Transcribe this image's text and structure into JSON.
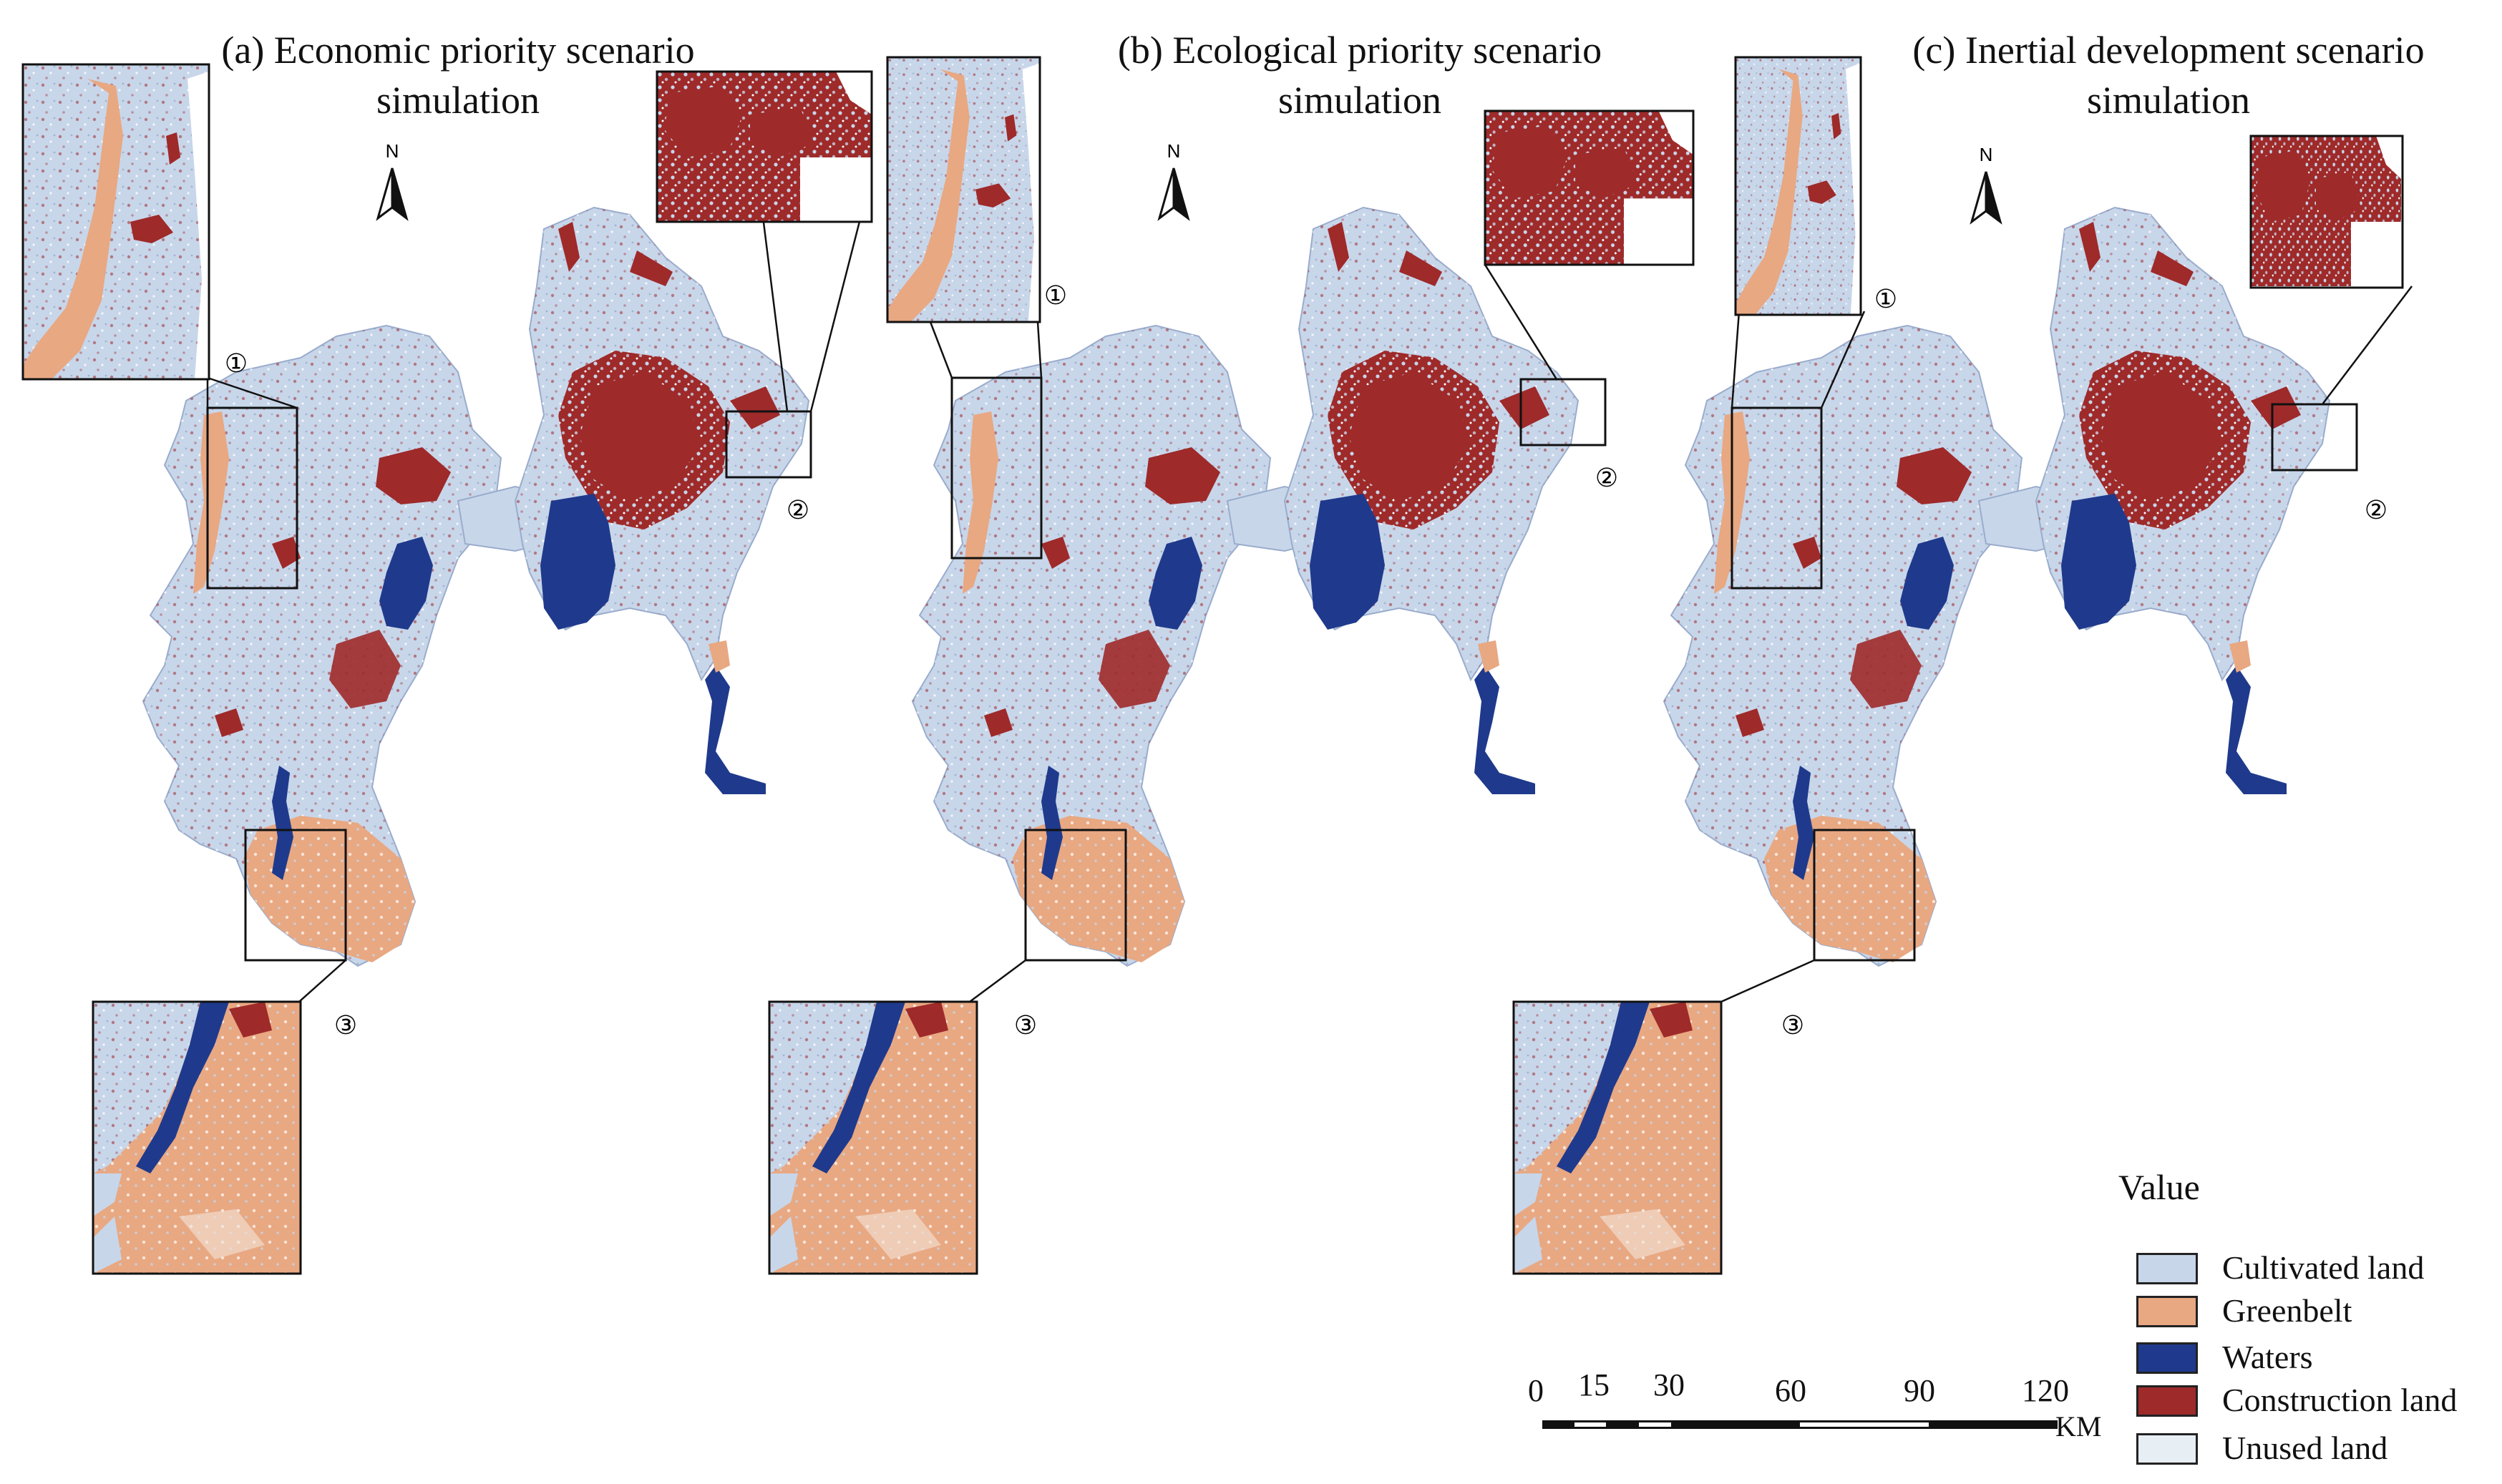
{
  "panels": [
    {
      "id": "a",
      "title_line1": "(a) Economic priority scenario",
      "title_line2": "simulation"
    },
    {
      "id": "b",
      "title_line1": "(b) Ecological priority scenario",
      "title_line2": "simulation"
    },
    {
      "id": "c",
      "title_line1": "(c) Inertial development scenario",
      "title_line2": "simulation"
    }
  ],
  "north_arrow": {
    "label": "N"
  },
  "inset_markers": [
    "①",
    "②",
    "③"
  ],
  "legend": {
    "title": "Value",
    "items": [
      {
        "label": "Cultivated land",
        "color": "#c8d6ea"
      },
      {
        "label": "Greenbelt",
        "color": "#e8a882"
      },
      {
        "label": "Waters",
        "color": "#1f3a8c"
      },
      {
        "label": "Construction land",
        "color": "#9e2a2a"
      },
      {
        "label": "Unused land",
        "color": "#e7eef4"
      }
    ]
  },
  "scale_bar": {
    "ticks": [
      "0",
      "15",
      "30",
      "60",
      "90",
      "120"
    ],
    "unit": "KM"
  },
  "colors": {
    "cultivated": "#c8d6ea",
    "greenbelt": "#e8a882",
    "waters": "#1f3a8c",
    "construction": "#9e2a2a",
    "unused": "#e7eef4"
  }
}
